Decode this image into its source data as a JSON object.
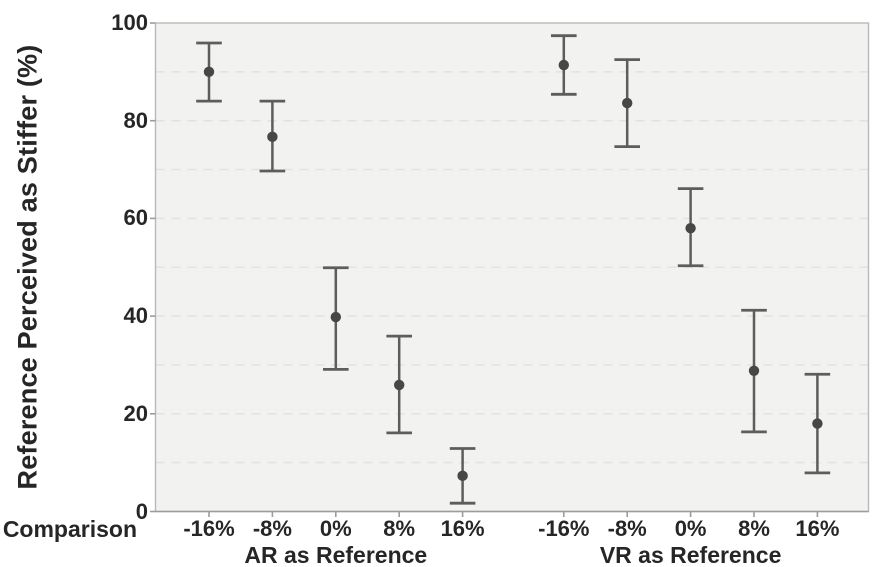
{
  "chart_data": {
    "type": "scatter",
    "error_bars": true,
    "title": "",
    "ylabel": "Reference Perceived as Stiffer (%)",
    "xlabel": "Comparison",
    "ylim": [
      0,
      100
    ],
    "yticks": [
      0,
      20,
      40,
      60,
      80,
      100
    ],
    "gridline_step": 10,
    "grid_style": "dashed",
    "legend": "none",
    "categories": [
      "-16%",
      "-8%",
      "0%",
      "8%",
      "16%"
    ],
    "groups": [
      {
        "label": "AR as Reference",
        "means": [
          90.0,
          76.7,
          39.8,
          25.9,
          7.3
        ],
        "ci_low": [
          84.0,
          69.7,
          29.1,
          16.1,
          1.7
        ],
        "ci_high": [
          95.9,
          84.0,
          49.9,
          35.9,
          12.9
        ]
      },
      {
        "label": "VR as Reference",
        "means": [
          91.4,
          83.6,
          58.0,
          28.8,
          18.0
        ],
        "ci_low": [
          85.4,
          74.7,
          50.3,
          16.3,
          7.9
        ],
        "ci_high": [
          97.4,
          92.5,
          66.1,
          41.2,
          28.1
        ]
      }
    ],
    "colors": {
      "marker": "#474747",
      "error_bar": "#5d5d5d",
      "plot_background": "#f2f2f0",
      "gridline": "#e2e2e0",
      "border": "#b9b9b7",
      "axis": "#9c9c9a",
      "text": "#262626"
    }
  }
}
